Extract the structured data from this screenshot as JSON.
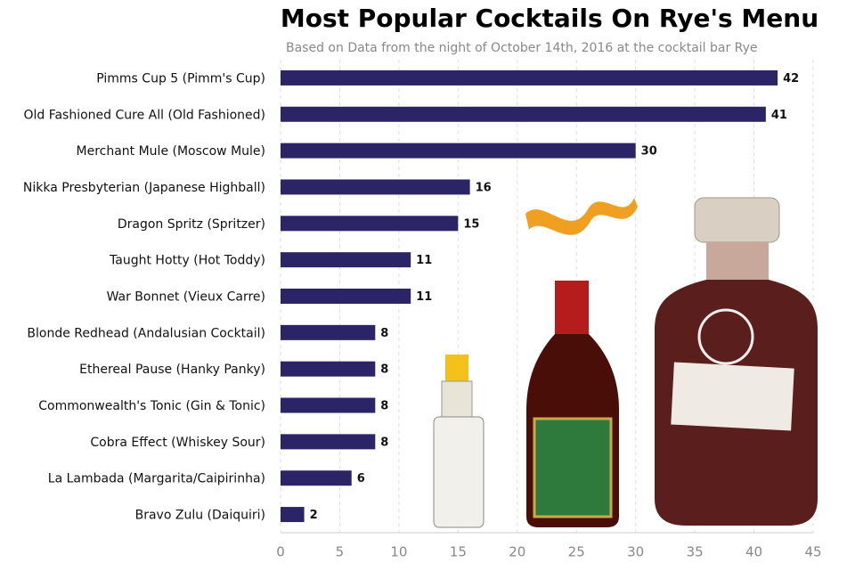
{
  "chart_data": {
    "type": "bar",
    "orientation": "horizontal",
    "title": "Most Popular Cocktails On Rye's Menu",
    "subtitle": "Based on Data from the night of October 14th, 2016 at the cocktail bar Rye",
    "categories": [
      "Pimms Cup 5 (Pimm's Cup)",
      "Old Fashioned Cure All (Old Fashioned)",
      "Merchant Mule (Moscow Mule)",
      "Nikka Presbyterian (Japanese Highball)",
      "Dragon Spritz (Spritzer)",
      "Taught Hotty (Hot Toddy)",
      "War Bonnet (Vieux Carre)",
      "Blonde Redhead (Andalusian Cocktail)",
      "Ethereal Pause (Hanky Panky)",
      "Commonwealth's Tonic (Gin & Tonic)",
      "Cobra Effect (Whiskey Sour)",
      "La Lambada (Margarita/Caipirinha)",
      "Bravo Zulu (Daiquiri)"
    ],
    "values": [
      42,
      41,
      30,
      16,
      15,
      11,
      11,
      8,
      8,
      8,
      8,
      6,
      2
    ],
    "color": "#2b2567",
    "xlim": [
      0,
      45
    ],
    "xticks": [
      0,
      5,
      10,
      15,
      20,
      25,
      30,
      35,
      40,
      45
    ],
    "grid": true
  }
}
